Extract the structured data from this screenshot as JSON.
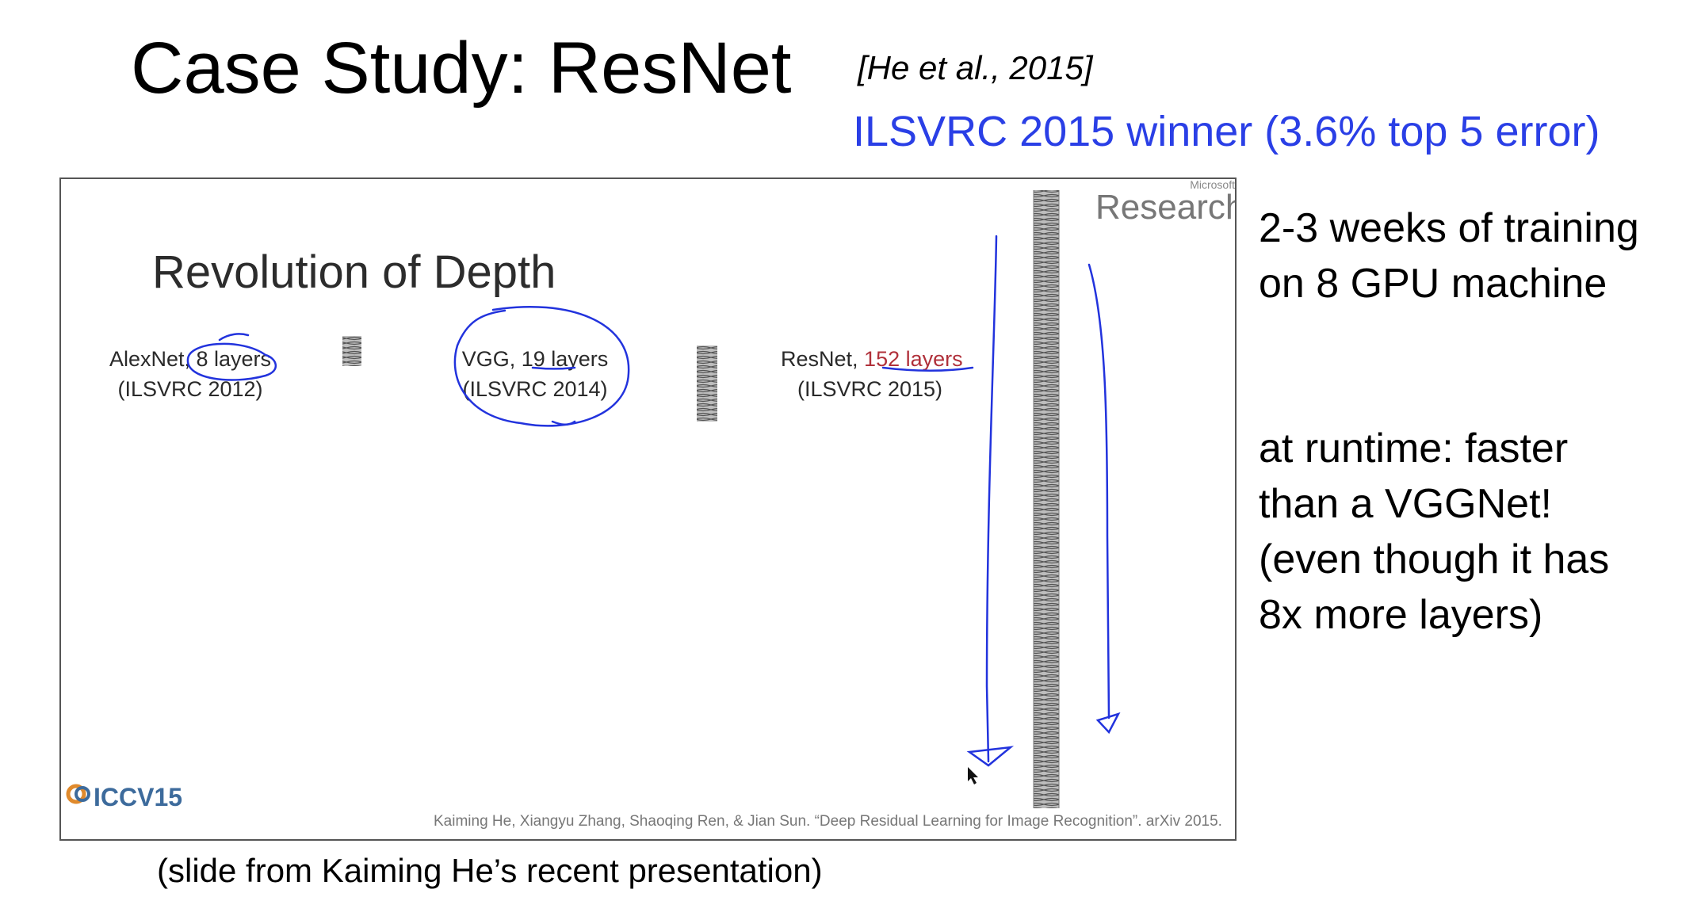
{
  "title": "Case Study: ResNet",
  "citation": "[He et al., 2015]",
  "subtitle": "ILSVRC 2015 winner (3.6% top 5 error)",
  "slide": {
    "heading": "Revolution of Depth",
    "logo_small": "Microsoft",
    "logo_big": "Research",
    "networks": [
      {
        "name": "AlexNet, ",
        "layers": "8 layers",
        "year": "(ILSVRC 2012)"
      },
      {
        "name": "VGG, ",
        "layers": "19 layers",
        "year": "(ILSVRC 2014)"
      },
      {
        "name": "ResNet, ",
        "layers": "152 layers",
        "year": "(ILSVRC 2015)"
      }
    ],
    "conference_logo": "ICCV15",
    "footer": "Kaiming He, Xiangyu Zhang, Shaoqing Ren, & Jian Sun. “Deep Residual Learning for Image Recognition”. arXiv 2015."
  },
  "side_notes": {
    "training": [
      "2-3 weeks of training",
      "on 8 GPU machine"
    ],
    "runtime": [
      "at runtime: faster",
      "than a VGGNet!",
      "(even though it has",
      "8x more layers)"
    ]
  },
  "caption": "(slide from Kaiming He’s recent presentation)",
  "colors": {
    "accent_blue": "#2a3fe6",
    "annotation_blue": "#2233dd",
    "resnet_red": "#b0303a"
  }
}
